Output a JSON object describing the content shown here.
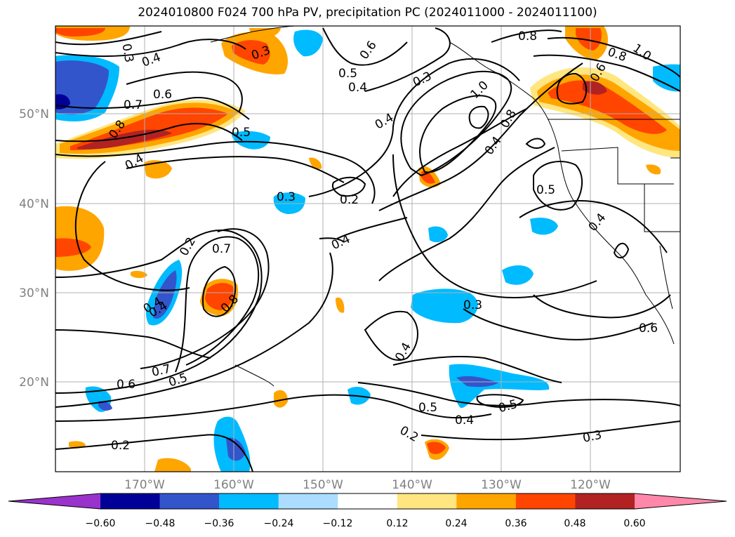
{
  "title": "2024010800 F024 700 hPa PV, precipitation PC (2024011000 - 2024011100)",
  "map": {
    "lat_labels": [
      "50°N",
      "40°N",
      "30°N",
      "20°N"
    ],
    "lon_labels": [
      "170°W",
      "160°W",
      "150°W",
      "140°W",
      "130°W",
      "120°W"
    ],
    "extent": {
      "lon_min": -180,
      "lon_max": -110,
      "lat_min": 10,
      "lat_max": 60
    },
    "grid": true,
    "contour_labels": [
      "0.3",
      "0.4",
      "0.6",
      "0.7",
      "0.8",
      "0.4",
      "0.5",
      "0.4",
      "0.2",
      "0.7",
      "0.8",
      "0.4",
      "0.7",
      "0.6",
      "0.5",
      "0.2",
      "0.3",
      "0.6",
      "0.5",
      "0.4",
      "0.3",
      "0.4",
      "0.2",
      "0.4",
      "1.0",
      "0.8",
      "0.3",
      "0.4",
      "0.5",
      "0.2",
      "0.4",
      "0.8",
      "0.8",
      "1.0",
      "0.6",
      "0.5",
      "0.4",
      "0.3",
      "0.6",
      "0.5",
      "0.3",
      "0.4"
    ]
  },
  "colorbar": {
    "ticks": [
      "−0.60",
      "−0.48",
      "−0.36",
      "−0.24",
      "−0.12",
      "0.12",
      "0.24",
      "0.36",
      "0.48",
      "0.60"
    ],
    "colors": [
      "#9933cc",
      "#000099",
      "#3355cc",
      "#00bbff",
      "#aaddff",
      "#ffffff",
      "#ffe680",
      "#ffa500",
      "#ff4500",
      "#b22222",
      "#ff88aa"
    ]
  },
  "palette": {
    "neg_light": "#aaddff",
    "neg_mid": "#00bbff",
    "neg_strong": "#3355cc",
    "neg_xstrong": "#000099",
    "pos_light": "#ffe680",
    "pos_mid": "#ffa500",
    "pos_strong": "#ff4500",
    "pos_xstrong": "#b22222"
  }
}
